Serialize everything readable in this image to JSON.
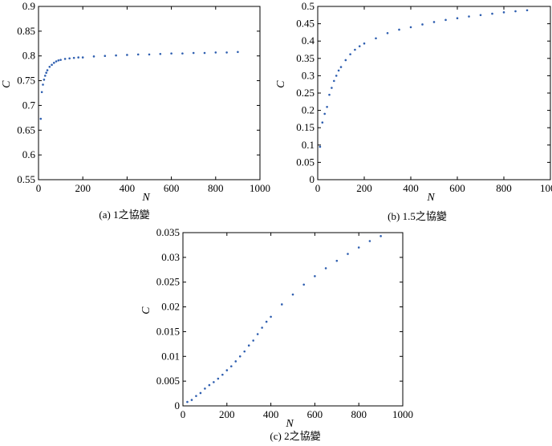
{
  "colors": {
    "marker": "#2f5fb0",
    "axis": "#000000",
    "background": "#ffffff"
  },
  "chart_data": [
    {
      "type": "scatter",
      "caption": "(a) 1之協變",
      "xlabel": "N",
      "ylabel": "C",
      "xlim": [
        0,
        1000
      ],
      "ylim": [
        0.55,
        0.9
      ],
      "xticks": [
        "0",
        "200",
        "400",
        "600",
        "800",
        "1000"
      ],
      "yticks": [
        "0.55",
        "0.6",
        "0.65",
        "0.7",
        "0.75",
        "0.8",
        "0.85",
        "0.9"
      ],
      "grid": false,
      "x": [
        10,
        15,
        20,
        25,
        30,
        35,
        40,
        50,
        60,
        70,
        80,
        90,
        100,
        120,
        140,
        160,
        180,
        200,
        250,
        300,
        350,
        400,
        450,
        500,
        550,
        600,
        650,
        700,
        750,
        800,
        850,
        900
      ],
      "y": [
        0.673,
        0.727,
        0.742,
        0.752,
        0.76,
        0.766,
        0.771,
        0.778,
        0.782,
        0.786,
        0.789,
        0.791,
        0.792,
        0.794,
        0.795,
        0.796,
        0.797,
        0.797,
        0.799,
        0.8,
        0.801,
        0.802,
        0.803,
        0.803,
        0.804,
        0.805,
        0.805,
        0.806,
        0.806,
        0.807,
        0.807,
        0.808
      ]
    },
    {
      "type": "scatter",
      "caption": "(b) 1.5之協變",
      "xlabel": "N",
      "ylabel": "C",
      "xlim": [
        0,
        1000
      ],
      "ylim": [
        0,
        0.5
      ],
      "xticks": [
        "0",
        "200",
        "400",
        "600",
        "800",
        "1000"
      ],
      "yticks": [
        "0",
        "0.05",
        "0.1",
        "0.15",
        "0.2",
        "0.25",
        "0.3",
        "0.35",
        "0.4",
        "0.45",
        "0.5"
      ],
      "grid": false,
      "x": [
        10,
        20,
        30,
        40,
        50,
        60,
        70,
        80,
        90,
        100,
        120,
        140,
        160,
        180,
        200,
        250,
        300,
        350,
        400,
        450,
        500,
        550,
        600,
        650,
        700,
        750,
        800,
        850,
        900
      ],
      "y": [
        0.095,
        0.165,
        0.19,
        0.21,
        0.245,
        0.265,
        0.285,
        0.3,
        0.315,
        0.325,
        0.345,
        0.362,
        0.375,
        0.385,
        0.393,
        0.408,
        0.423,
        0.433,
        0.44,
        0.448,
        0.455,
        0.461,
        0.466,
        0.471,
        0.475,
        0.479,
        0.483,
        0.486,
        0.489
      ]
    },
    {
      "type": "scatter",
      "caption": "(c) 2之協變",
      "xlabel": "N",
      "ylabel": "C",
      "xlim": [
        0,
        1000
      ],
      "ylim": [
        0,
        0.035
      ],
      "xticks": [
        "0",
        "200",
        "400",
        "600",
        "800",
        "1000"
      ],
      "yticks": [
        "0",
        "0.005",
        "0.01",
        "0.015",
        "0.02",
        "0.025",
        "0.03",
        "0.035"
      ],
      "grid": false,
      "x": [
        20,
        40,
        60,
        80,
        100,
        120,
        140,
        160,
        180,
        200,
        220,
        240,
        260,
        280,
        300,
        320,
        340,
        360,
        380,
        400,
        450,
        500,
        550,
        600,
        650,
        700,
        750,
        800,
        850,
        900
      ],
      "y": [
        0.0008,
        0.0012,
        0.002,
        0.0026,
        0.0035,
        0.0042,
        0.0048,
        0.0055,
        0.0063,
        0.0072,
        0.008,
        0.009,
        0.01,
        0.011,
        0.0122,
        0.0132,
        0.0145,
        0.0158,
        0.017,
        0.018,
        0.0205,
        0.0225,
        0.0245,
        0.0262,
        0.0278,
        0.0293,
        0.0307,
        0.032,
        0.0333,
        0.0343
      ]
    }
  ]
}
